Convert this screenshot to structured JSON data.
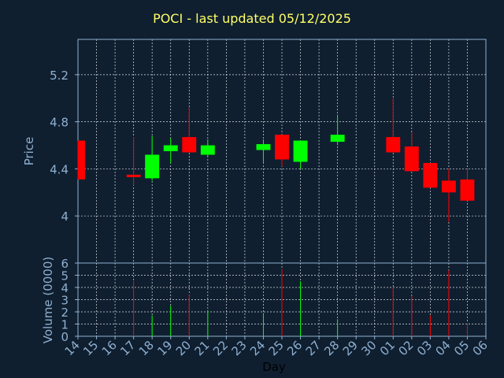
{
  "chart_data": {
    "type": "candlestick",
    "title": "POCI - last updated 05/12/2025",
    "xlabel": "Day",
    "ylabel": "Price",
    "volume_label": "Volume (0000)",
    "price_ylim": [
      3.6,
      5.5
    ],
    "price_ticks": [
      "4",
      "4.4",
      "4.8",
      "5.2"
    ],
    "volume_ylim": [
      0,
      6
    ],
    "volume_ticks": [
      "0",
      "1",
      "2",
      "3",
      "4",
      "5",
      "6"
    ],
    "x_labels": [
      "14",
      "15",
      "16",
      "17",
      "18",
      "19",
      "20",
      "21",
      "22",
      "23",
      "24",
      "25",
      "26",
      "27",
      "28",
      "29",
      "30",
      "01",
      "02",
      "03",
      "04",
      "05",
      "06"
    ],
    "grid": true,
    "colors": {
      "background": "#0f1f30",
      "up": "#00ff00",
      "down": "#ff0000",
      "text": "#8fb0d0",
      "title": "#ffff66",
      "grid": "#ffffff"
    },
    "candles": [
      {
        "day": "14",
        "open": 4.64,
        "close": 4.31,
        "high": 4.64,
        "low": 4.31,
        "volume": 0
      },
      {
        "day": "17",
        "open": 4.35,
        "close": 4.33,
        "high": 4.67,
        "low": 4.26,
        "volume": 4.5
      },
      {
        "day": "18",
        "open": 4.32,
        "close": 4.52,
        "high": 4.68,
        "low": 4.3,
        "volume": 1.7
      },
      {
        "day": "19",
        "open": 4.55,
        "close": 4.6,
        "high": 4.66,
        "low": 4.45,
        "volume": 2.5
      },
      {
        "day": "20",
        "open": 4.67,
        "close": 4.54,
        "high": 4.92,
        "low": 4.54,
        "volume": 3.4
      },
      {
        "day": "21",
        "open": 4.52,
        "close": 4.6,
        "high": 4.65,
        "low": 4.51,
        "volume": 2.1
      },
      {
        "day": "24",
        "open": 4.56,
        "close": 4.61,
        "high": 4.65,
        "low": 4.45,
        "volume": 1.9
      },
      {
        "day": "25",
        "open": 4.69,
        "close": 4.48,
        "high": 4.69,
        "low": 4.42,
        "volume": 5.5
      },
      {
        "day": "26",
        "open": 4.46,
        "close": 4.64,
        "high": 4.64,
        "low": 4.4,
        "volume": 4.5
      },
      {
        "day": "28",
        "open": 4.63,
        "close": 4.69,
        "high": 4.86,
        "low": 4.6,
        "volume": 1.4
      },
      {
        "day": "01",
        "open": 4.67,
        "close": 4.54,
        "high": 5.0,
        "low": 4.54,
        "volume": 4.0
      },
      {
        "day": "02",
        "open": 4.59,
        "close": 4.38,
        "high": 4.71,
        "low": 4.38,
        "volume": 3.3
      },
      {
        "day": "03",
        "open": 4.45,
        "close": 4.24,
        "high": 4.45,
        "low": 4.24,
        "volume": 1.7
      },
      {
        "day": "04",
        "open": 4.3,
        "close": 4.2,
        "high": 4.4,
        "low": 3.95,
        "volume": 5.4
      },
      {
        "day": "05",
        "open": 4.31,
        "close": 4.13,
        "high": 4.4,
        "low": 4.13,
        "volume": 1.1
      }
    ]
  }
}
